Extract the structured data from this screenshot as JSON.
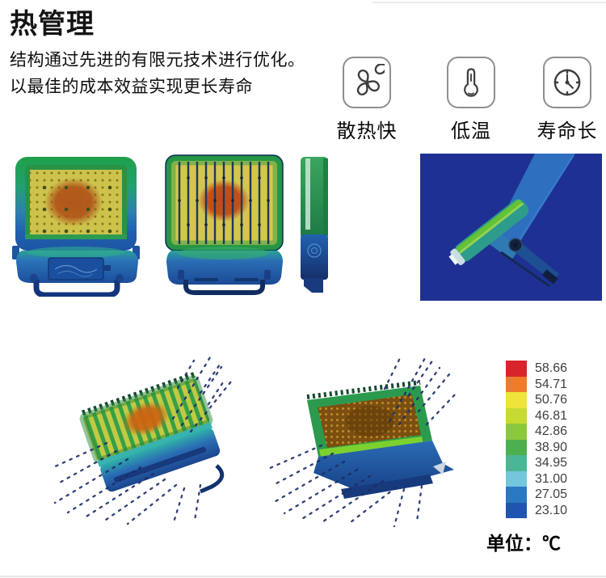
{
  "page": {
    "title": "热管理",
    "subtitle_line1": "结构通过先进的有限元技术进行优化。",
    "subtitle_line2": "以最佳的成本效益实现更长寿命"
  },
  "features": [
    {
      "icon": "fan-icon",
      "label": "散热快"
    },
    {
      "icon": "thermometer-icon",
      "label": "低温"
    },
    {
      "icon": "clock-icon",
      "label": "寿命长"
    }
  ],
  "images": {
    "front_view": "floodlight-front-thermal-simulation",
    "back_view": "floodlight-back-fins-thermal-simulation",
    "side_view": "floodlight-side-thermal-simulation",
    "fea_render": "floodlight-mounted-fea-thermal-render",
    "airflow_back": "floodlight-airflow-back-view",
    "airflow_front": "floodlight-airflow-front-view"
  },
  "legend": {
    "unit_label": "单位：℃",
    "entries": [
      {
        "value": "58.66",
        "color": "#d8252b"
      },
      {
        "value": "54.71",
        "color": "#ee7c2b"
      },
      {
        "value": "50.76",
        "color": "#efe43b"
      },
      {
        "value": "46.81",
        "color": "#c6d934"
      },
      {
        "value": "42.86",
        "color": "#8cc83d"
      },
      {
        "value": "38.90",
        "color": "#4eb04c"
      },
      {
        "value": "34.95",
        "color": "#49b795"
      },
      {
        "value": "31.00",
        "color": "#74c6dd"
      },
      {
        "value": "27.05",
        "color": "#2a77c3"
      },
      {
        "value": "23.10",
        "color": "#1f55b0"
      }
    ]
  },
  "colors": {
    "thermal_hot": "#b5581c",
    "thermal_warm": "#cdc24c",
    "thermal_mid": "#2a9a4e",
    "thermal_cool": "#2a6cb4",
    "thermal_cold": "#1c4a96",
    "fea_background": "#1e3193",
    "icon_border": "#8f8f8f"
  }
}
